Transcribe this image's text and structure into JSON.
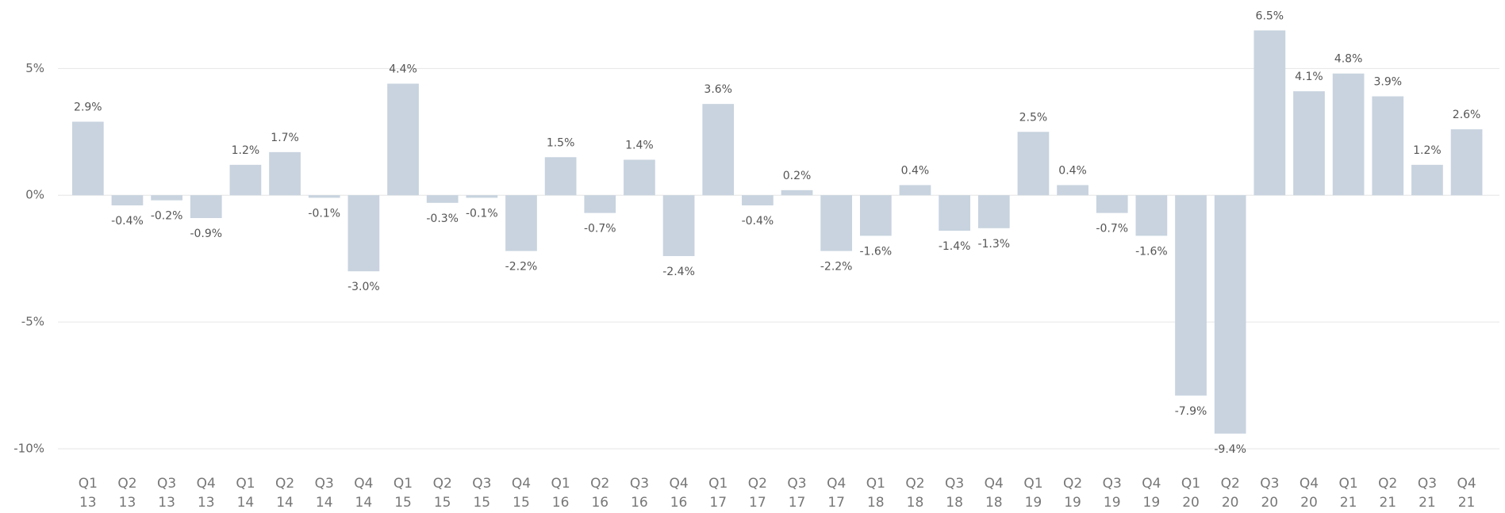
{
  "chart_data": {
    "type": "bar",
    "categories": [
      "Q1 13",
      "Q2 13",
      "Q3 13",
      "Q4 13",
      "Q1 14",
      "Q2 14",
      "Q3 14",
      "Q4 14",
      "Q1 15",
      "Q2 15",
      "Q3 15",
      "Q4 15",
      "Q1 16",
      "Q2 16",
      "Q3 16",
      "Q4 16",
      "Q1 17",
      "Q2 17",
      "Q3 17",
      "Q4 17",
      "Q1 18",
      "Q2 18",
      "Q3 18",
      "Q4 18",
      "Q1 19",
      "Q2 19",
      "Q3 19",
      "Q4 19",
      "Q1 20",
      "Q2 20",
      "Q3 20",
      "Q4 20",
      "Q1 21",
      "Q2 21",
      "Q3 21",
      "Q4 21"
    ],
    "values": [
      2.9,
      -0.4,
      -0.2,
      -0.9,
      1.2,
      1.7,
      -0.1,
      -3.0,
      4.4,
      -0.3,
      -0.1,
      -2.2,
      1.5,
      -0.7,
      1.4,
      -2.4,
      3.6,
      -0.4,
      0.2,
      -2.2,
      -1.6,
      0.4,
      -1.4,
      -1.3,
      2.5,
      0.4,
      -0.7,
      -1.6,
      -7.9,
      -9.4,
      6.5,
      4.1,
      4.8,
      3.9,
      1.2,
      2.6
    ],
    "value_labels": [
      "2.9%",
      "-0.4%",
      "-0.2%",
      "-0.9%",
      "1.2%",
      "1.7%",
      "-0.1%",
      "-3.0%",
      "4.4%",
      "-0.3%",
      "-0.1%",
      "-2.2%",
      "1.5%",
      "-0.7%",
      "1.4%",
      "-2.4%",
      "3.6%",
      "-0.4%",
      "0.2%",
      "-2.2%",
      "-1.6%",
      "0.4%",
      "-1.4%",
      "-1.3%",
      "2.5%",
      "0.4%",
      "-0.7%",
      "-1.6%",
      "-7.9%",
      "-9.4%",
      "6.5%",
      "4.1%",
      "4.8%",
      "3.9%",
      "1.2%",
      "2.6%"
    ],
    "color": "#c8d3df",
    "ylim": [
      -10.5,
      7.7
    ],
    "yticks": [
      {
        "value": 5,
        "label": "5%"
      },
      {
        "value": 0,
        "label": "0%"
      },
      {
        "value": -5,
        "label": "-5%"
      },
      {
        "value": -10,
        "label": "-10%"
      }
    ],
    "grid": true
  }
}
